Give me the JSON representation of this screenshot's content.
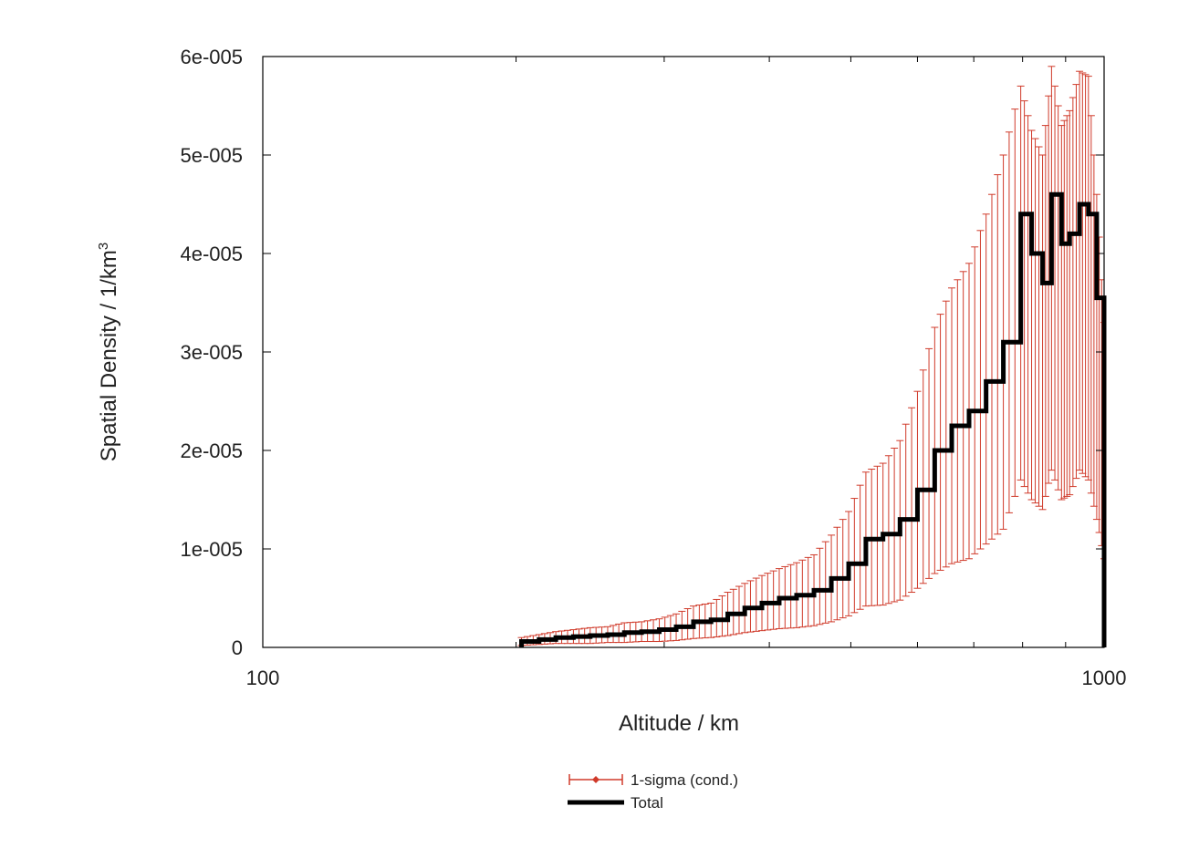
{
  "chart_data": {
    "type": "line",
    "title": "",
    "xlabel": "Altitude / km",
    "ylabel": "Spatial Density / 1/km",
    "ylabel_superscript": "3",
    "x_scale": "log",
    "xlim": [
      100,
      1000
    ],
    "ylim": [
      0,
      6e-05
    ],
    "x_ticks": [
      {
        "value": 100,
        "label": "100"
      },
      {
        "value": 1000,
        "label": "1000"
      }
    ],
    "y_ticks": [
      {
        "value": 0,
        "label": "0"
      },
      {
        "value": 1e-05,
        "label": "1e-005"
      },
      {
        "value": 2e-05,
        "label": "2e-005"
      },
      {
        "value": 3e-05,
        "label": "3e-005"
      },
      {
        "value": 4e-05,
        "label": "4e-005"
      },
      {
        "value": 5e-05,
        "label": "5e-005"
      },
      {
        "value": 6e-05,
        "label": "6e-005"
      }
    ],
    "grid": false,
    "legend_position": "bottom-center",
    "colors": {
      "sigma": "#d03a2a",
      "total": "#000000"
    },
    "series": [
      {
        "name": "1-sigma (cond.)",
        "type": "errorbar",
        "x": [
          203,
          213,
          223,
          234,
          245,
          257,
          269,
          282,
          296,
          310,
          325,
          341,
          357,
          374,
          392,
          411,
          431,
          452,
          474,
          497,
          521,
          546,
          572,
          600,
          629,
          659,
          691,
          724,
          759,
          796,
          820,
          845,
          866,
          890,
          910,
          935,
          958,
          980,
          1000
        ],
        "y": [
          6e-07,
          8e-07,
          1e-06,
          1.1e-06,
          1.2e-06,
          1.3e-06,
          1.5e-06,
          1.6e-06,
          1.8e-06,
          2.1e-06,
          2.6e-06,
          2.8e-06,
          3.4e-06,
          4e-06,
          4.5e-06,
          5e-06,
          5.3e-06,
          5.8e-06,
          7e-06,
          8.5e-06,
          1.1e-05,
          1.15e-05,
          1.3e-05,
          1.6e-05,
          2e-05,
          2.25e-05,
          2.4e-05,
          2.7e-05,
          3.1e-05,
          4.4e-05,
          4e-05,
          3.7e-05,
          4.6e-05,
          4.1e-05,
          4.2e-05,
          4.5e-05,
          4.4e-05,
          3.55e-05,
          2.5e-05
        ],
        "lower": [
          2e-07,
          3e-07,
          4e-07,
          4e-07,
          4e-07,
          5e-07,
          5e-07,
          6e-07,
          6e-07,
          7e-07,
          9e-07,
          1e-06,
          1.2e-06,
          1.5e-06,
          1.7e-06,
          1.9e-06,
          2e-06,
          2.2e-06,
          2.6e-06,
          3.2e-06,
          4.2e-06,
          4.3e-06,
          4.8e-06,
          6e-06,
          7.5e-06,
          8.5e-06,
          9e-06,
          1.05e-05,
          1.2e-05,
          1.7e-05,
          1.5e-05,
          1.4e-05,
          1.8e-05,
          1.5e-05,
          1.55e-05,
          1.8e-05,
          1.7e-05,
          1.3e-05,
          9e-06
        ],
        "upper": [
          1e-06,
          1.3e-06,
          1.6e-06,
          1.8e-06,
          2e-06,
          2.1e-06,
          2.5e-06,
          2.6e-06,
          2.9e-06,
          3.4e-06,
          4.2e-06,
          4.5e-06,
          5.6e-06,
          6.5e-06,
          7.3e-06,
          8e-06,
          8.6e-06,
          9.4e-06,
          1.14e-05,
          1.38e-05,
          1.78e-05,
          1.87e-05,
          2.1e-05,
          2.6e-05,
          3.25e-05,
          3.65e-05,
          3.9e-05,
          4.4e-05,
          5e-05,
          5.7e-05,
          5.25e-05,
          5e-05,
          5.9e-05,
          5.3e-05,
          5.45e-05,
          5.85e-05,
          5.8e-05,
          4.6e-05,
          3.3e-05
        ]
      },
      {
        "name": "Total",
        "type": "step",
        "x": [
          203,
          213,
          223,
          234,
          245,
          257,
          269,
          282,
          296,
          310,
          325,
          341,
          357,
          374,
          392,
          411,
          431,
          452,
          474,
          497,
          521,
          546,
          572,
          600,
          629,
          659,
          691,
          724,
          759,
          796,
          820,
          845,
          866,
          890,
          910,
          935,
          958,
          980,
          1000
        ],
        "y": [
          6e-07,
          8e-07,
          1e-06,
          1.1e-06,
          1.2e-06,
          1.3e-06,
          1.5e-06,
          1.6e-06,
          1.8e-06,
          2.1e-06,
          2.6e-06,
          2.8e-06,
          3.4e-06,
          4e-06,
          4.5e-06,
          5e-06,
          5.3e-06,
          5.8e-06,
          7e-06,
          8.5e-06,
          1.1e-05,
          1.15e-05,
          1.3e-05,
          1.6e-05,
          2e-05,
          2.25e-05,
          2.4e-05,
          2.7e-05,
          3.1e-05,
          4.4e-05,
          4e-05,
          3.7e-05,
          4.6e-05,
          4.1e-05,
          4.2e-05,
          4.5e-05,
          4.4e-05,
          3.55e-05,
          2.5e-05
        ]
      }
    ]
  }
}
